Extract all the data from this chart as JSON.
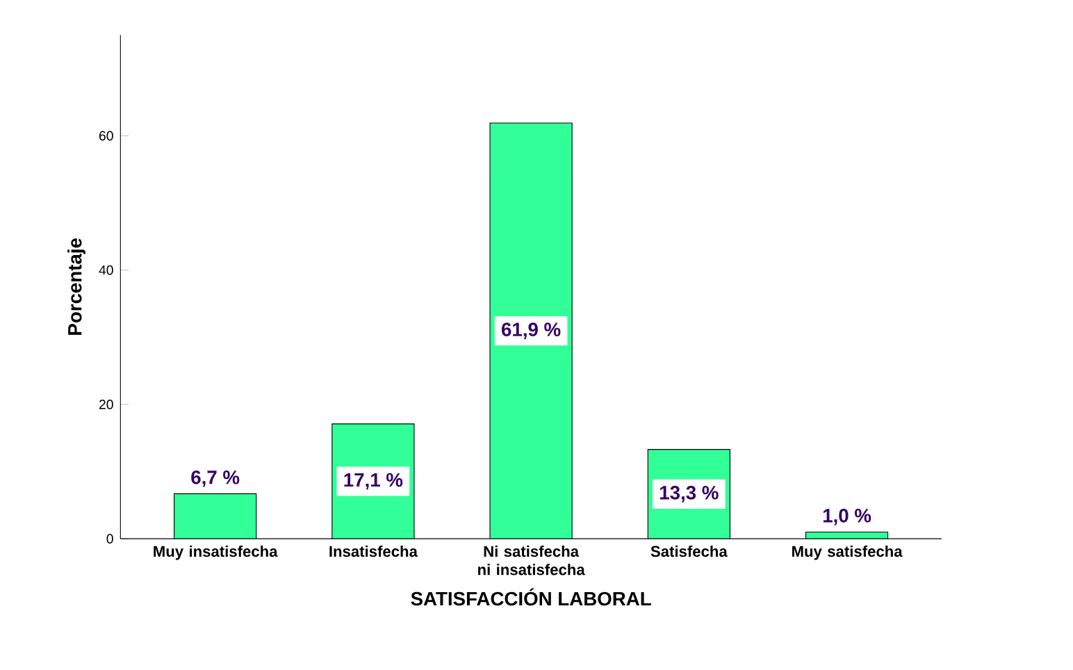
{
  "chart_data": {
    "type": "bar",
    "xlabel": "SATISFACCIÓN LABORAL",
    "ylabel": "Porcentaje",
    "categories": [
      "Muy insatisfecha",
      "Insatisfecha",
      "Ni satisfecha ni insatisfecha",
      "Satisfecha",
      "Muy satisfecha"
    ],
    "values": [
      6.7,
      17.1,
      61.9,
      13.3,
      1.0
    ],
    "value_labels": [
      "6,7 %",
      "17,1 %",
      "61,9 %",
      "13,3 %",
      "1,0 %"
    ],
    "color": "#33ff99",
    "ylim": [
      0,
      75
    ],
    "yticks": [
      0,
      20,
      40,
      60
    ],
    "grid": false
  }
}
